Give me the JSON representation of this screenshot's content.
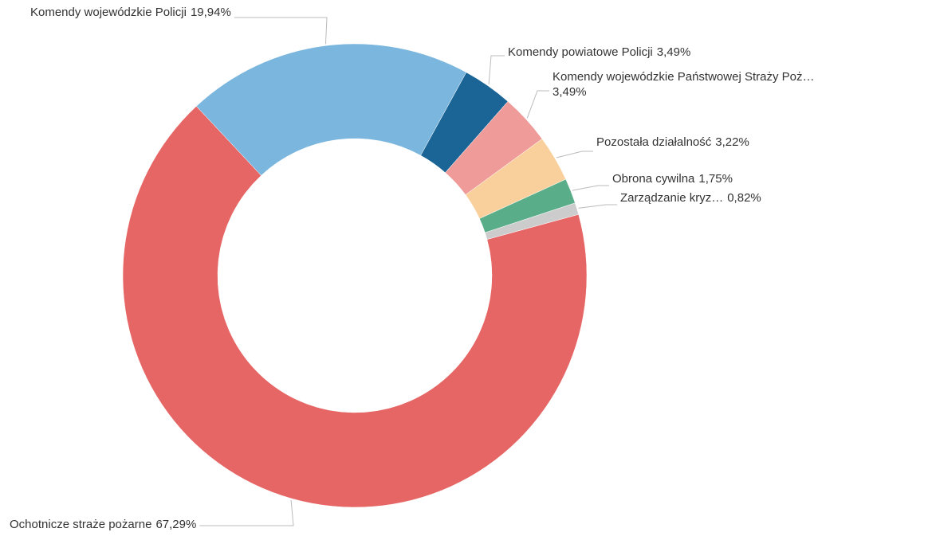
{
  "chart_data": {
    "type": "donut",
    "categories": [
      "Ochotnicze straże pożarne",
      "Komendy wojewódzkie Policji",
      "Komendy powiatowe Policji",
      "Komendy wojewódzkie Państwowej Straży Poż…",
      "Pozostała działalność",
      "Obrona cywilna",
      "Zarządzanie kryz…"
    ],
    "values": [
      67.29,
      19.94,
      3.49,
      3.49,
      3.22,
      1.75,
      0.82
    ],
    "value_labels": [
      "67,29%",
      "19,94%",
      "3,49%",
      "3,49%",
      "3,22%",
      "1,75%",
      "0,82%"
    ],
    "colors": [
      "#e66665",
      "#7ab6de",
      "#1a6496",
      "#ee9b9a",
      "#f9cf9b",
      "#5aad89",
      "#cccccc"
    ]
  }
}
